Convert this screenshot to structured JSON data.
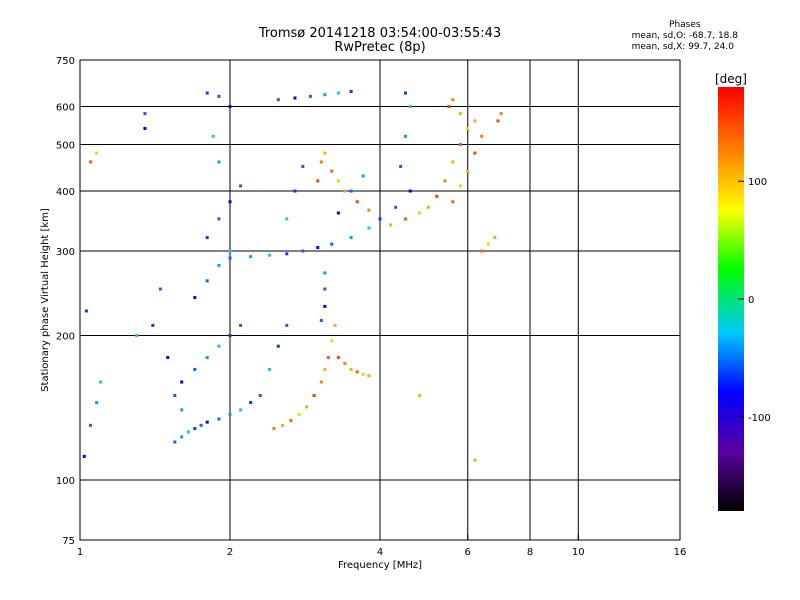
{
  "header": {
    "title_line1": "Tromsø 20141218 03:54:00-03:55:43",
    "title_line2": "RwPretec (8p)"
  },
  "phases_box": {
    "title": "Phases",
    "line_o": "mean, sd,O: -68.7, 18.8",
    "line_x": "mean, sd,X:  99.7, 24.0"
  },
  "chart_data": {
    "type": "scatter",
    "xlabel": "Frequency [MHz]",
    "ylabel": "Stationary phase Virtual Height [km]",
    "x_scale": "log",
    "y_scale": "log",
    "xlim": [
      1,
      16
    ],
    "ylim": [
      75,
      750
    ],
    "x_ticks": [
      {
        "value": 1,
        "label": "1"
      },
      {
        "value": 2,
        "label": "2"
      },
      {
        "value": 4,
        "label": "4"
      },
      {
        "value": 6,
        "label": "6"
      },
      {
        "value": 8,
        "label": "8"
      },
      {
        "value": 10,
        "label": "10"
      },
      {
        "value": 16,
        "label": "16"
      }
    ],
    "x_gridlines": [
      2,
      4,
      6,
      8,
      10
    ],
    "y_ticks": [
      {
        "value": 75,
        "label": "75"
      },
      {
        "value": 100,
        "label": "100"
      },
      {
        "value": 200,
        "label": "200"
      },
      {
        "value": 300,
        "label": "300"
      },
      {
        "value": 400,
        "label": "400"
      },
      {
        "value": 500,
        "label": "500"
      },
      {
        "value": 600,
        "label": "600"
      },
      {
        "value": 750,
        "label": "750"
      }
    ],
    "y_gridlines": [
      100,
      200,
      300,
      400,
      500,
      600
    ],
    "grid": true,
    "colorbar": {
      "label": "[deg]",
      "range": [
        -180,
        180
      ],
      "ticks": [
        {
          "value": 100,
          "label": "100"
        },
        {
          "value": 0,
          "label": "0"
        },
        {
          "value": -100,
          "label": "-100"
        }
      ],
      "colormap": [
        "#000000",
        "#5a00a0",
        "#0000ff",
        "#00c8ff",
        "#00ff00",
        "#ffff00",
        "#ff8000",
        "#ff0000"
      ]
    },
    "series": [
      {
        "mode": "O",
        "points": [
          [
            1.02,
            112
          ],
          [
            1.05,
            130
          ],
          [
            1.08,
            145
          ],
          [
            1.1,
            160
          ],
          [
            1.03,
            225
          ],
          [
            1.35,
            580
          ],
          [
            1.35,
            540
          ],
          [
            1.55,
            120
          ],
          [
            1.6,
            123
          ],
          [
            1.65,
            126
          ],
          [
            1.7,
            128
          ],
          [
            1.75,
            130
          ],
          [
            1.8,
            132
          ],
          [
            1.9,
            134
          ],
          [
            2.0,
            137
          ],
          [
            2.1,
            140
          ],
          [
            2.2,
            145
          ],
          [
            2.3,
            150
          ],
          [
            1.6,
            160
          ],
          [
            1.7,
            170
          ],
          [
            1.8,
            180
          ],
          [
            1.9,
            190
          ],
          [
            2.0,
            200
          ],
          [
            2.1,
            210
          ],
          [
            1.7,
            240
          ],
          [
            1.8,
            260
          ],
          [
            1.9,
            280
          ],
          [
            2.0,
            300
          ],
          [
            1.8,
            320
          ],
          [
            1.9,
            350
          ],
          [
            2.0,
            380
          ],
          [
            2.1,
            410
          ],
          [
            1.9,
            460
          ],
          [
            1.85,
            520
          ],
          [
            1.8,
            640
          ],
          [
            1.9,
            630
          ],
          [
            2.0,
            600
          ],
          [
            2.0,
            290
          ],
          [
            2.2,
            292
          ],
          [
            2.4,
            294
          ],
          [
            2.6,
            296
          ],
          [
            2.8,
            300
          ],
          [
            3.0,
            305
          ],
          [
            3.2,
            310
          ],
          [
            3.5,
            320
          ],
          [
            3.8,
            335
          ],
          [
            4.0,
            350
          ],
          [
            4.3,
            370
          ],
          [
            4.6,
            400
          ],
          [
            4.4,
            450
          ],
          [
            4.5,
            520
          ],
          [
            4.6,
            600
          ],
          [
            4.5,
            640
          ],
          [
            2.5,
            620
          ],
          [
            2.7,
            625
          ],
          [
            2.9,
            630
          ],
          [
            3.1,
            635
          ],
          [
            3.3,
            640
          ],
          [
            3.5,
            645
          ],
          [
            3.1,
            250
          ],
          [
            3.1,
            230
          ],
          [
            3.05,
            215
          ],
          [
            3.1,
            270
          ],
          [
            2.6,
            350
          ],
          [
            2.7,
            400
          ],
          [
            2.8,
            450
          ],
          [
            3.3,
            360
          ],
          [
            3.5,
            400
          ],
          [
            3.7,
            430
          ],
          [
            1.3,
            200
          ],
          [
            1.4,
            210
          ],
          [
            1.45,
            250
          ],
          [
            1.5,
            180
          ],
          [
            1.55,
            150
          ],
          [
            1.6,
            140
          ],
          [
            2.4,
            170
          ],
          [
            2.5,
            190
          ],
          [
            2.6,
            210
          ]
        ]
      },
      {
        "mode": "X",
        "points": [
          [
            2.45,
            128
          ],
          [
            2.55,
            130
          ],
          [
            2.65,
            133
          ],
          [
            2.75,
            137
          ],
          [
            2.85,
            142
          ],
          [
            2.95,
            150
          ],
          [
            3.05,
            160
          ],
          [
            3.1,
            170
          ],
          [
            3.15,
            180
          ],
          [
            3.2,
            195
          ],
          [
            3.25,
            210
          ],
          [
            3.3,
            180
          ],
          [
            3.4,
            175
          ],
          [
            3.5,
            170
          ],
          [
            3.6,
            168
          ],
          [
            3.7,
            166
          ],
          [
            3.8,
            165
          ],
          [
            3.0,
            420
          ],
          [
            3.05,
            460
          ],
          [
            3.1,
            480
          ],
          [
            3.2,
            440
          ],
          [
            3.3,
            420
          ],
          [
            3.4,
            400
          ],
          [
            3.6,
            380
          ],
          [
            3.8,
            365
          ],
          [
            4.2,
            340
          ],
          [
            4.5,
            350
          ],
          [
            4.8,
            360
          ],
          [
            5.0,
            370
          ],
          [
            5.2,
            390
          ],
          [
            5.4,
            420
          ],
          [
            5.6,
            460
          ],
          [
            5.8,
            500
          ],
          [
            6.0,
            540
          ],
          [
            6.2,
            560
          ],
          [
            5.5,
            600
          ],
          [
            5.6,
            620
          ],
          [
            5.8,
            580
          ],
          [
            6.4,
            300
          ],
          [
            6.6,
            310
          ],
          [
            6.8,
            320
          ],
          [
            6.9,
            560
          ],
          [
            7.0,
            580
          ],
          [
            6.2,
            110
          ],
          [
            5.6,
            380
          ],
          [
            5.8,
            410
          ],
          [
            6.0,
            440
          ],
          [
            6.2,
            480
          ],
          [
            6.4,
            520
          ],
          [
            4.8,
            150
          ],
          [
            1.05,
            460
          ],
          [
            1.08,
            480
          ]
        ]
      }
    ]
  }
}
